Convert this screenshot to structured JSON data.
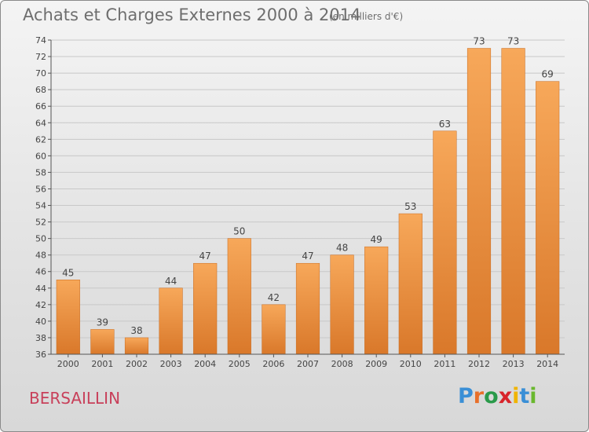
{
  "header": {
    "title": "Achats et Charges Externes 2000 à 2014",
    "unit": "(en milliers d'€)"
  },
  "footer": {
    "place": "BERSAILLIN",
    "logo": {
      "letters": [
        "P",
        "r",
        "o",
        "x",
        "i",
        "t",
        "i"
      ],
      "colors": [
        "#3a8fd6",
        "#e8702a",
        "#2a9a4a",
        "#d8242b",
        "#f0b400",
        "#3a8fd6",
        "#6ab82e"
      ]
    }
  },
  "colors": {
    "bar_light": "#f7a85a",
    "bar_dark": "#d9782a",
    "axis": "#555555",
    "grid": "#c8c8c8"
  },
  "chart_data": {
    "type": "bar",
    "title": "Achats et Charges Externes 2000 à 2014",
    "subtitle": "(en milliers d'€)",
    "categories": [
      "2000",
      "2001",
      "2002",
      "2003",
      "2004",
      "2005",
      "2006",
      "2007",
      "2008",
      "2009",
      "2010",
      "2011",
      "2012",
      "2013",
      "2014"
    ],
    "values": [
      45,
      39,
      38,
      44,
      47,
      50,
      42,
      47,
      48,
      49,
      53,
      63,
      73,
      73,
      69
    ],
    "ylim": [
      36,
      74
    ],
    "yticks": [
      36,
      38,
      40,
      42,
      44,
      46,
      48,
      50,
      52,
      54,
      56,
      58,
      60,
      62,
      64,
      66,
      68,
      70,
      72,
      74
    ],
    "grid": true,
    "data_labels": true
  }
}
